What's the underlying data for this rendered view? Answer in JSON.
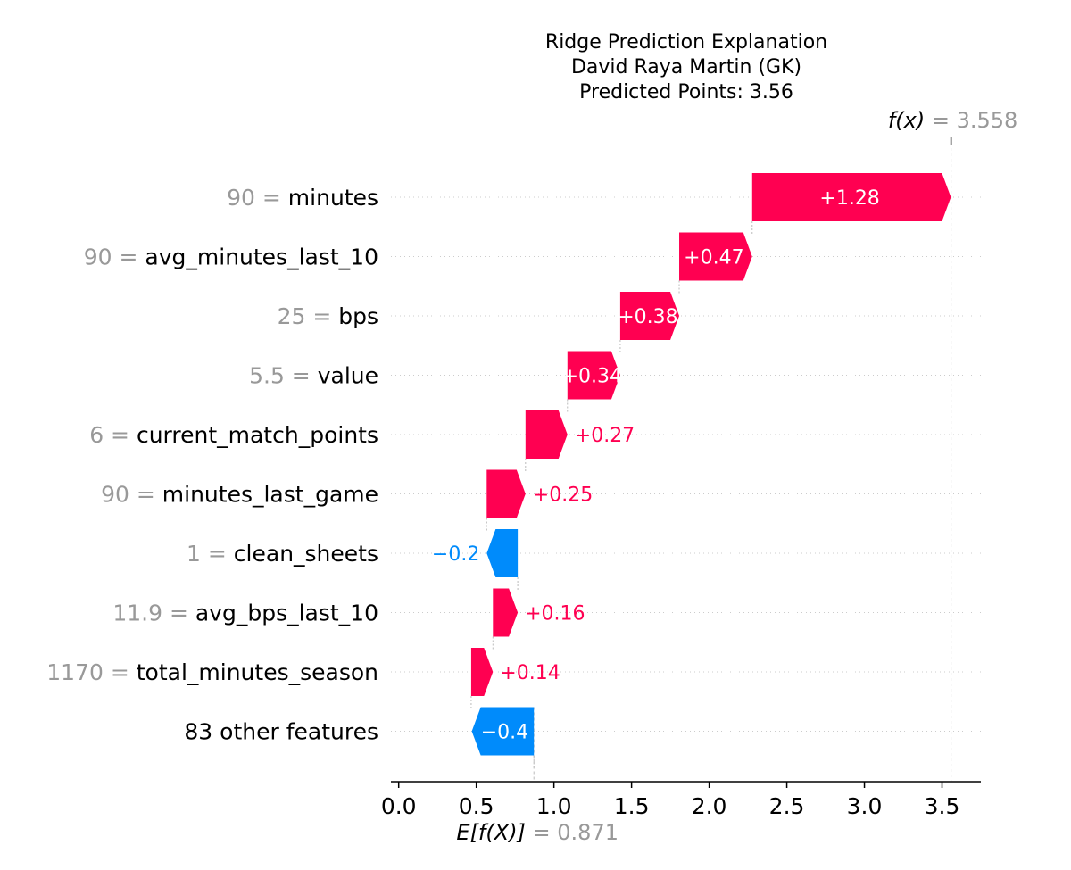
{
  "chart_data": {
    "type": "waterfall",
    "title_lines": [
      "Ridge Prediction Explanation",
      "David Raya Martin (GK)",
      "Predicted Points: 3.56"
    ],
    "base_value": 0.871,
    "final_value": 3.558,
    "fx_label": "f(x)",
    "fx_value_text": "= 3.558",
    "ex_label": "E[f(X)]",
    "ex_value_text": "= 0.871",
    "xlim": [
      -0.05,
      3.75
    ],
    "xticks": [
      0.0,
      0.5,
      1.0,
      1.5,
      2.0,
      2.5,
      3.0,
      3.5
    ],
    "xtick_labels": [
      "0.0",
      "0.5",
      "1.0",
      "1.5",
      "2.0",
      "2.5",
      "3.0",
      "3.5"
    ],
    "colors": {
      "positive": "#ff0051",
      "negative": "#008bfb",
      "value_gray": "#999999",
      "text": "#000000",
      "grid": "#cccccc"
    },
    "features": [
      {
        "value_text": "90",
        "name": "minutes",
        "contribution": 1.28,
        "start": 2.277,
        "label": "+1.28",
        "label_inside": true
      },
      {
        "value_text": "90",
        "name": "avg_minutes_last_10",
        "contribution": 0.47,
        "start": 1.807,
        "label": "+0.47",
        "label_inside": true
      },
      {
        "value_text": "25",
        "name": "bps",
        "contribution": 0.38,
        "start": 1.427,
        "label": "+0.38",
        "label_inside": true
      },
      {
        "value_text": "5.5",
        "name": "value",
        "contribution": 0.34,
        "start": 1.087,
        "label": "+0.34",
        "label_inside": true
      },
      {
        "value_text": "6",
        "name": "current_match_points",
        "contribution": 0.27,
        "start": 0.817,
        "label": "+0.27",
        "label_inside": false
      },
      {
        "value_text": "90",
        "name": "minutes_last_game",
        "contribution": 0.25,
        "start": 0.567,
        "label": "+0.25",
        "label_inside": false
      },
      {
        "value_text": "1",
        "name": "clean_sheets",
        "contribution": -0.2,
        "start": 0.767,
        "label": "−0.2",
        "label_inside": false
      },
      {
        "value_text": "11.9",
        "name": "avg_bps_last_10",
        "contribution": 0.16,
        "start": 0.607,
        "label": "+0.16",
        "label_inside": false
      },
      {
        "value_text": "1170",
        "name": "total_minutes_season",
        "contribution": 0.14,
        "start": 0.467,
        "label": "+0.14",
        "label_inside": false
      },
      {
        "value_text": "",
        "name": "83 other features",
        "contribution": -0.4,
        "start": 0.871,
        "label": "−0.4",
        "label_inside": true
      }
    ]
  }
}
